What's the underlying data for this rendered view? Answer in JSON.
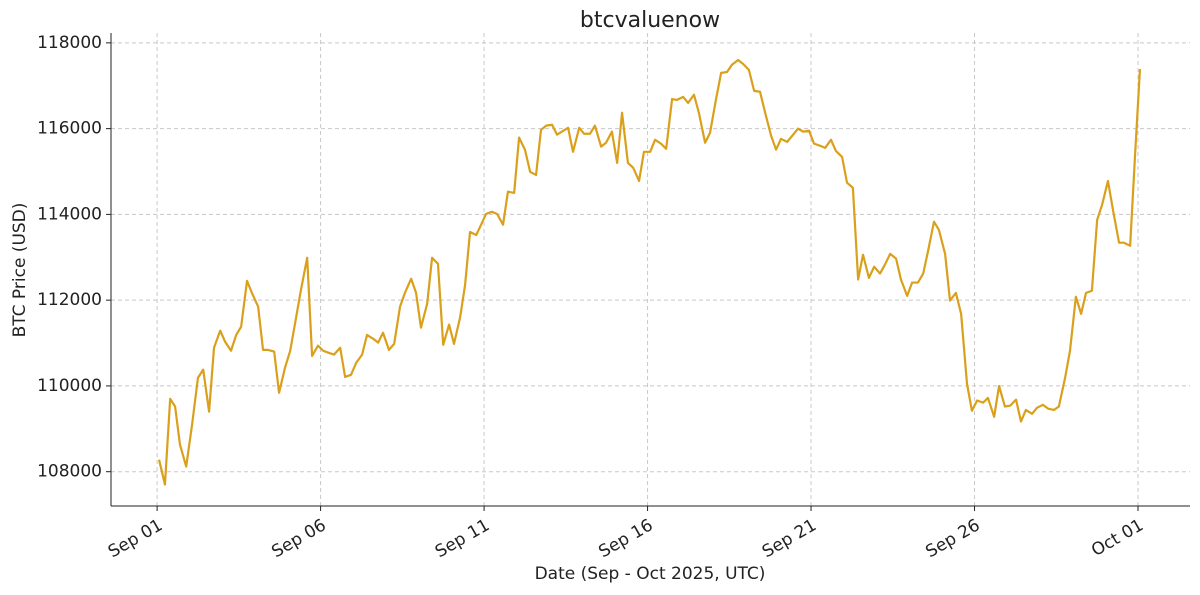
{
  "chart_data": {
    "type": "line",
    "title": "btcvaluenow",
    "x_label": "Date (Sep - Oct 2025, UTC)",
    "y_label": "BTC Price (USD)",
    "color": "#daa01c",
    "grid": true,
    "xlim": [
      -1.41,
      31.59
    ],
    "ylim": [
      107200,
      118230
    ],
    "xticks": [
      {
        "value": 0,
        "label": "Sep 01"
      },
      {
        "value": 5,
        "label": "Sep 06"
      },
      {
        "value": 10,
        "label": "Sep 11"
      },
      {
        "value": 15,
        "label": "Sep 16"
      },
      {
        "value": 20,
        "label": "Sep 21"
      },
      {
        "value": 25,
        "label": "Sep 26"
      },
      {
        "value": 30,
        "label": "Oct 01"
      }
    ],
    "yticks": [
      108000,
      110000,
      112000,
      114000,
      116000,
      118000
    ],
    "x": [
      0.06,
      0.24,
      0.4,
      0.55,
      0.7,
      0.89,
      1.07,
      1.25,
      1.41,
      1.59,
      1.74,
      1.93,
      2.08,
      2.26,
      2.42,
      2.57,
      2.75,
      2.91,
      3.09,
      3.24,
      3.39,
      3.58,
      3.73,
      3.91,
      4.07,
      4.25,
      4.4,
      4.59,
      4.74,
      4.92,
      5.08,
      5.26,
      5.41,
      5.6,
      5.75,
      5.93,
      6.09,
      6.27,
      6.42,
      6.61,
      6.76,
      6.91,
      7.09,
      7.25,
      7.43,
      7.58,
      7.77,
      7.92,
      8.07,
      8.26,
      8.41,
      8.59,
      8.75,
      8.93,
      9.08,
      9.27,
      9.42,
      9.57,
      9.76,
      9.91,
      10.06,
      10.24,
      10.4,
      10.58,
      10.73,
      10.92,
      11.07,
      11.25,
      11.41,
      11.59,
      11.74,
      11.9,
      12.08,
      12.23,
      12.42,
      12.57,
      12.72,
      12.91,
      13.06,
      13.24,
      13.39,
      13.58,
      13.73,
      13.91,
      14.07,
      14.22,
      14.4,
      14.56,
      14.74,
      14.89,
      15.08,
      15.23,
      15.41,
      15.57,
      15.75,
      15.9,
      16.09,
      16.24,
      16.42,
      16.57,
      16.76,
      16.91,
      17.09,
      17.25,
      17.43,
      17.58,
      17.77,
      17.92,
      18.1,
      18.26,
      18.44,
      18.59,
      18.78,
      18.93,
      19.08,
      19.27,
      19.42,
      19.6,
      19.76,
      19.94,
      20.09,
      20.28,
      20.43,
      20.61,
      20.76,
      20.95,
      21.1,
      21.28,
      21.44,
      21.59,
      21.77,
      21.93,
      22.11,
      22.26,
      22.42,
      22.6,
      22.75,
      22.94,
      23.09,
      23.27,
      23.43,
      23.58,
      23.76,
      23.91,
      24.1,
      24.25,
      24.43,
      24.59,
      24.77,
      24.92,
      25.08,
      25.26,
      25.41,
      25.6,
      25.75,
      25.93,
      26.09,
      26.27,
      26.42,
      26.57,
      26.76,
      26.91,
      27.09,
      27.25,
      27.43,
      27.58,
      27.77,
      27.92,
      28.1,
      28.26,
      28.41,
      28.59,
      28.75,
      28.9,
      29.08,
      29.24,
      29.42,
      29.57,
      29.76,
      29.91,
      30.06
    ],
    "values": [
      108280,
      107700,
      109700,
      109520,
      108630,
      108120,
      109100,
      110190,
      110380,
      109400,
      110890,
      111290,
      111030,
      110820,
      111190,
      111380,
      112450,
      112150,
      111850,
      110840,
      110840,
      110800,
      109840,
      110420,
      110820,
      111590,
      112240,
      112990,
      110700,
      110940,
      110820,
      110770,
      110730,
      110890,
      110210,
      110260,
      110540,
      110730,
      111190,
      111100,
      111010,
      111240,
      110840,
      110980,
      111850,
      112170,
      112500,
      112170,
      111360,
      111920,
      112990,
      112850,
      110960,
      111430,
      110980,
      111610,
      112360,
      113590,
      113520,
      113760,
      114010,
      114060,
      114010,
      113760,
      114530,
      114500,
      115790,
      115510,
      114990,
      114920,
      115970,
      116070,
      116090,
      115860,
      115950,
      116020,
      115460,
      116020,
      115880,
      115880,
      116070,
      115580,
      115670,
      115930,
      115200,
      116370,
      115200,
      115090,
      114780,
      115460,
      115460,
      115740,
      115650,
      115530,
      116690,
      116670,
      116740,
      116600,
      116790,
      116370,
      115670,
      115900,
      116670,
      117300,
      117320,
      117490,
      117600,
      117510,
      117370,
      116880,
      116860,
      116390,
      115830,
      115510,
      115760,
      115690,
      115830,
      116000,
      115930,
      115950,
      115650,
      115600,
      115550,
      115740,
      115480,
      115340,
      114740,
      114620,
      112480,
      113060,
      112520,
      112780,
      112620,
      112830,
      113080,
      112970,
      112480,
      112100,
      112410,
      112410,
      112620,
      113150,
      113830,
      113640,
      113080,
      111990,
      112170,
      111680,
      110050,
      109420,
      109660,
      109610,
      109720,
      109280,
      110000,
      109520,
      109540,
      109680,
      109170,
      109440,
      109350,
      109490,
      109560,
      109470,
      109440,
      109520,
      110190,
      110820,
      112080,
      111680,
      112170,
      112220,
      113870,
      114220,
      114780,
      114080,
      113340,
      113340,
      113270,
      115390,
      117390
    ]
  }
}
